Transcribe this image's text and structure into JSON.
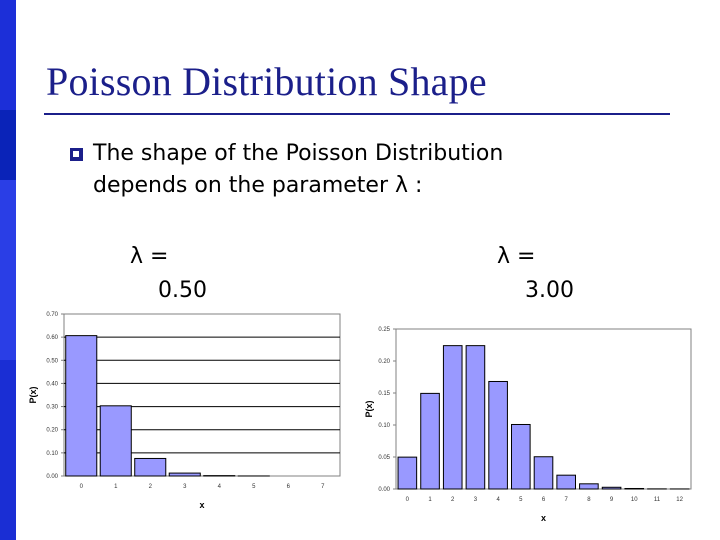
{
  "slide": {
    "title": "Poisson Distribution Shape",
    "bullet_line1": "The shape of the Poisson Distribution",
    "bullet_line2": "depends on the parameter λ :",
    "colors": {
      "accent": "#1b1f8a",
      "sidebar": "#0f2ecc",
      "bar_fill": "#9999ff"
    }
  },
  "panels": [
    {
      "lambda_symbol": "λ =",
      "lambda_value": "0.50"
    },
    {
      "lambda_symbol": "λ =",
      "lambda_value": "3.00"
    }
  ],
  "chart_data": [
    {
      "type": "bar",
      "title": "",
      "xlabel": "x",
      "ylabel": "P(x)",
      "categories": [
        "0",
        "1",
        "2",
        "3",
        "4",
        "5",
        "6",
        "7"
      ],
      "values": [
        0.6065,
        0.3033,
        0.0758,
        0.0126,
        0.0016,
        0.0002,
        0.0,
        0.0
      ],
      "ylim": [
        0,
        0.7
      ],
      "yticks": [
        "0.00",
        "0.10",
        "0.20",
        "0.30",
        "0.40",
        "0.50",
        "0.60",
        "0.70"
      ],
      "grid": true
    },
    {
      "type": "bar",
      "title": "",
      "xlabel": "x",
      "ylabel": "P(x)",
      "categories": [
        "0",
        "1",
        "2",
        "3",
        "4",
        "5",
        "6",
        "7",
        "8",
        "9",
        "10",
        "11",
        "12"
      ],
      "values": [
        0.0498,
        0.1494,
        0.224,
        0.224,
        0.168,
        0.1008,
        0.0504,
        0.0216,
        0.0081,
        0.0027,
        0.0008,
        0.0002,
        0.0001
      ],
      "ylim": [
        0,
        0.25
      ],
      "yticks": [
        "0.00",
        "0.05",
        "0.10",
        "0.15",
        "0.20",
        "0.25"
      ],
      "grid": false
    }
  ]
}
